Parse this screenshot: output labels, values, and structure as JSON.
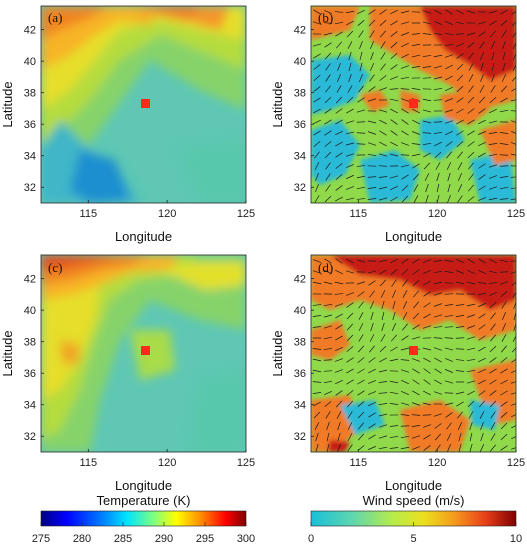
{
  "chart_data": [
    {
      "type": "heatmap",
      "panel_label": "(a)",
      "variable": "temperature",
      "xlabel": "Longitude",
      "ylabel": "Latitude",
      "xlim": [
        112,
        125
      ],
      "ylim": [
        31,
        43.5
      ],
      "xticks": [
        115,
        120,
        125
      ],
      "yticks": [
        32,
        34,
        36,
        38,
        40,
        42
      ],
      "marker": {
        "lon": 118.8,
        "lat": 37.4,
        "color": "#ff2a1a"
      },
      "grid": false
    },
    {
      "type": "heatmap",
      "panel_label": "(b)",
      "variable": "wind_speed",
      "xlabel": "Longitude",
      "ylabel": "Latitude",
      "xlim": [
        112,
        125
      ],
      "ylim": [
        31,
        43.5
      ],
      "xticks": [
        115,
        120,
        125
      ],
      "yticks": [
        32,
        34,
        36,
        38,
        40,
        42
      ],
      "marker": {
        "lon": 118.8,
        "lat": 37.4,
        "color": "#ff2a1a"
      },
      "wind_vectors": true,
      "grid": false
    },
    {
      "type": "heatmap",
      "panel_label": "(c)",
      "variable": "temperature",
      "xlabel": "Longitude",
      "ylabel": "Latitude",
      "xlim": [
        112,
        125
      ],
      "ylim": [
        31,
        43.5
      ],
      "xticks": [
        115,
        120,
        125
      ],
      "yticks": [
        32,
        34,
        36,
        38,
        40,
        42
      ],
      "marker": {
        "lon": 118.8,
        "lat": 37.4,
        "color": "#ff2a1a"
      },
      "grid": false
    },
    {
      "type": "heatmap",
      "panel_label": "(d)",
      "variable": "wind_speed",
      "xlabel": "Longitude",
      "ylabel": "Latitude",
      "xlim": [
        112,
        125
      ],
      "ylim": [
        31,
        43.5
      ],
      "xticks": [
        115,
        120,
        125
      ],
      "yticks": [
        32,
        34,
        36,
        38,
        40,
        42
      ],
      "marker": {
        "lon": 118.8,
        "lat": 37.4,
        "color": "#ff2a1a"
      },
      "wind_vectors": true,
      "grid": false
    }
  ],
  "colorbars": {
    "temperature": {
      "label": "Temperature (K)",
      "range": [
        275,
        300
      ],
      "ticks": [
        275,
        280,
        285,
        290,
        295,
        300
      ],
      "colormap": [
        "#00007f",
        "#0000ff",
        "#007fff",
        "#00ffff",
        "#7fff7f",
        "#ffff00",
        "#ff7f00",
        "#ff0000",
        "#7f0000"
      ]
    },
    "wind_speed": {
      "label": "Wind speed (m/s)",
      "range": [
        0,
        10
      ],
      "ticks": [
        0,
        5,
        10
      ],
      "colormap": [
        "#19bfd8",
        "#66d8a8",
        "#b4ec4a",
        "#e3e21e",
        "#f6a21c",
        "#f05a18",
        "#c81a10",
        "#7f0000"
      ]
    }
  },
  "panel_colors": {
    "wind_levels": [
      "#29b9d6",
      "#8fd94a",
      "#f07a26",
      "#c71d14"
    ],
    "temp_levels": [
      "#1f8fd0",
      "#27b8c8",
      "#53c9a5",
      "#86d36b",
      "#b5dc3c",
      "#d9e02a",
      "#f6dc2a",
      "#f7b426",
      "#f08424",
      "#e44e1c",
      "#c81e14"
    ]
  }
}
